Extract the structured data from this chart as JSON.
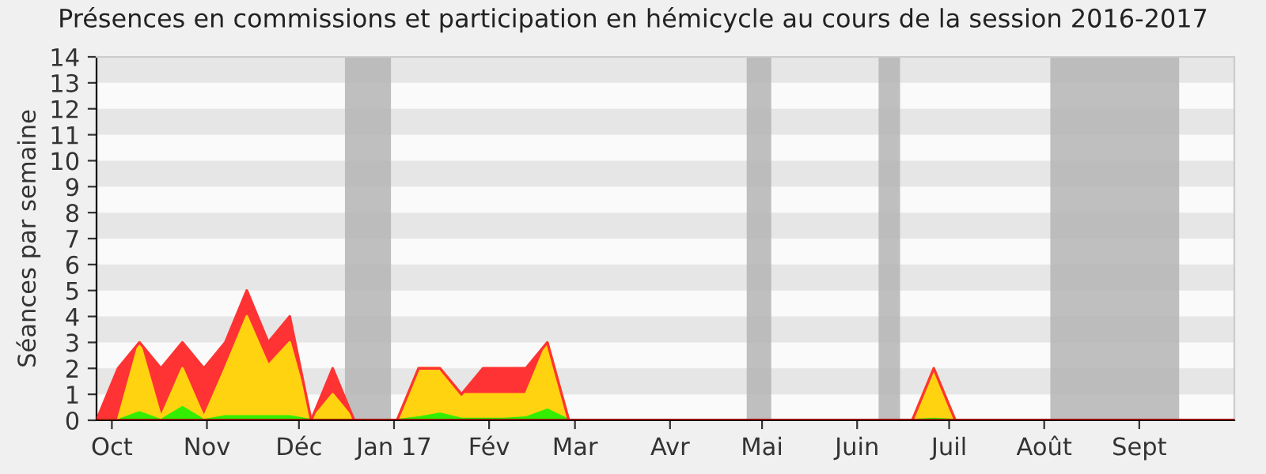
{
  "chart_data": {
    "type": "area",
    "stacked": true,
    "title": "Présences en commissions et participation en hémicycle au cours de la session 2016-2017",
    "ylabel": "Séances par semaine",
    "x": [
      "2016-09-26",
      "2016-10-03",
      "2016-10-10",
      "2016-10-17",
      "2016-10-24",
      "2016-10-31",
      "2016-11-07",
      "2016-11-14",
      "2016-11-21",
      "2016-11-28",
      "2016-12-05",
      "2016-12-12",
      "2016-12-19",
      "2016-12-26",
      "2017-01-02",
      "2017-01-09",
      "2017-01-16",
      "2017-01-23",
      "2017-01-30",
      "2017-02-06",
      "2017-02-13",
      "2017-02-20",
      "2017-02-27",
      "2017-03-06",
      "2017-03-13",
      "2017-03-20",
      "2017-03-27",
      "2017-04-03",
      "2017-04-10",
      "2017-04-17",
      "2017-04-24",
      "2017-05-01",
      "2017-05-08",
      "2017-05-15",
      "2017-05-22",
      "2017-05-29",
      "2017-06-05",
      "2017-06-12",
      "2017-06-19",
      "2017-06-26",
      "2017-07-03",
      "2017-07-10",
      "2017-07-17",
      "2017-07-24",
      "2017-07-31",
      "2017-08-07",
      "2017-08-14",
      "2017-08-21",
      "2017-08-28",
      "2017-09-04",
      "2017-09-11",
      "2017-09-18",
      "2017-09-25",
      "2017-10-02"
    ],
    "series": [
      {
        "color": "#33ee00",
        "values": [
          0,
          0,
          0.3,
          0,
          0.5,
          0,
          0.15,
          0.15,
          0.15,
          0.15,
          0,
          0,
          0,
          0,
          0,
          0.1,
          0.25,
          0.05,
          0.05,
          0.05,
          0.1,
          0.4,
          0,
          0,
          0,
          0,
          0,
          0,
          0,
          0,
          0,
          0,
          0,
          0,
          0,
          0,
          0,
          0,
          0,
          0.05,
          0,
          0,
          0,
          0,
          0,
          0,
          0,
          0,
          0,
          0,
          0,
          0,
          0,
          0
        ]
      },
      {
        "color": "#ffd30f",
        "values": [
          0,
          0,
          2.7,
          0.1,
          1.5,
          0.1,
          1.85,
          3.85,
          1.95,
          2.85,
          0,
          1,
          0,
          0,
          0,
          1.9,
          1.75,
          0.95,
          0.95,
          0.95,
          0.9,
          2.6,
          0,
          0,
          0,
          0,
          0,
          0,
          0,
          0,
          0,
          0,
          0,
          0,
          0,
          0,
          0,
          0,
          0,
          1.95,
          0,
          0,
          0,
          0,
          0,
          0,
          0,
          0,
          0,
          0,
          0,
          0,
          0,
          0
        ]
      },
      {
        "color": "#ff3333",
        "values": [
          0,
          2,
          0,
          1.9,
          1,
          1.9,
          1,
          1,
          0.9,
          1,
          0,
          1,
          0,
          0,
          0,
          0,
          0,
          0,
          1,
          1,
          1,
          0,
          0,
          0,
          0,
          0,
          0,
          0,
          0,
          0,
          0,
          0,
          0,
          0,
          0,
          0,
          0,
          0,
          0,
          0,
          0,
          0,
          0,
          0,
          0,
          0,
          0,
          0,
          0,
          0,
          0,
          0,
          0,
          0
        ]
      }
    ],
    "bands": [
      {
        "axis": "x",
        "from": "2016-12-16",
        "to": "2016-12-31",
        "color": "#b4b4b4"
      },
      {
        "axis": "x",
        "from": "2017-04-26",
        "to": "2017-05-04",
        "color": "#b4b4b4"
      },
      {
        "axis": "x",
        "from": "2017-06-08",
        "to": "2017-06-15",
        "color": "#b4b4b4"
      },
      {
        "axis": "x",
        "from": "2017-08-03",
        "to": "2017-09-14",
        "color": "#b4b4b4"
      }
    ],
    "xlim": [
      "2016-09-26",
      "2017-10-02"
    ],
    "xticks": [
      {
        "value": "2016-10-01",
        "label": "Oct"
      },
      {
        "value": "2016-11-01",
        "label": "Nov"
      },
      {
        "value": "2016-12-01",
        "label": "Déc"
      },
      {
        "value": "2017-01-01",
        "label": "Jan 17"
      },
      {
        "value": "2017-02-01",
        "label": "Fév"
      },
      {
        "value": "2017-03-01",
        "label": "Mar"
      },
      {
        "value": "2017-04-01",
        "label": "Avr"
      },
      {
        "value": "2017-05-01",
        "label": "Mai"
      },
      {
        "value": "2017-06-01",
        "label": "Juin"
      },
      {
        "value": "2017-07-01",
        "label": "Juil"
      },
      {
        "value": "2017-08-01",
        "label": "Août"
      },
      {
        "value": "2017-09-01",
        "label": "Sept"
      }
    ],
    "ylim": [
      0,
      14
    ],
    "yticks": [
      0,
      1,
      2,
      3,
      4,
      5,
      6,
      7,
      8,
      9,
      10,
      11,
      12,
      13,
      14
    ],
    "legend": false
  }
}
